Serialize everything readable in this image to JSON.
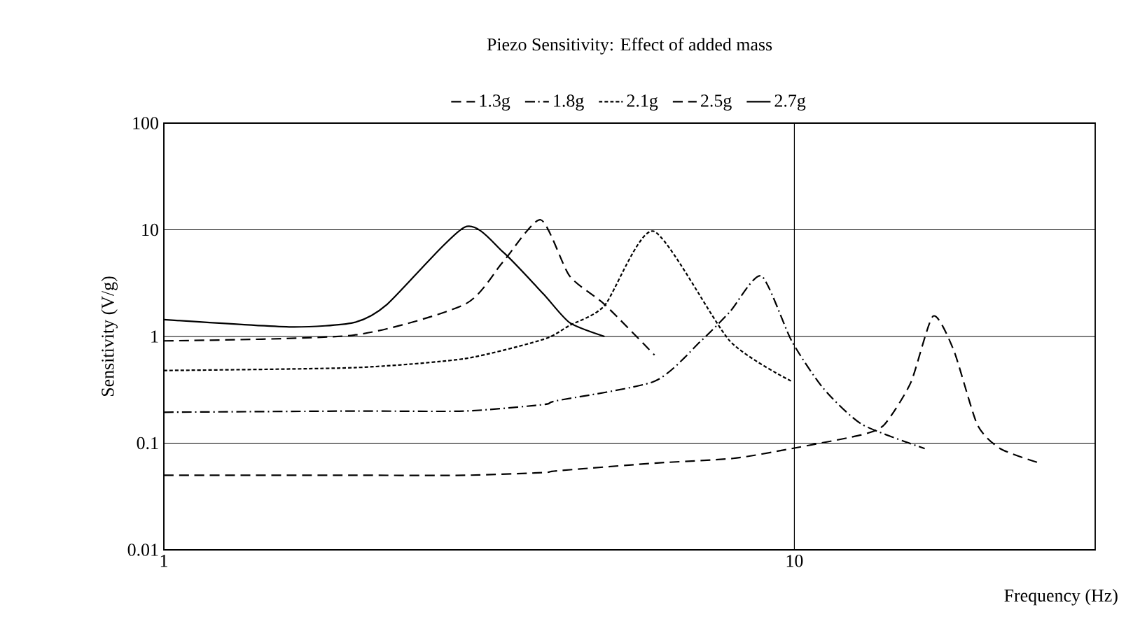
{
  "chart_data": {
    "type": "line",
    "title": "Piezo Sensitivity: Effect of added mass",
    "xlabel": "Frequency (Hz)",
    "ylabel": "Sensitivity (V/g)",
    "log": "xy",
    "grid": true,
    "legend": "top",
    "xlim": [
      1,
      30
    ],
    "ylim": [
      0.01,
      100
    ],
    "xticks": [
      1,
      10
    ],
    "yticks": [
      0.01,
      0.1,
      1,
      10,
      100
    ],
    "series": [
      {
        "name": "1.3g",
        "color": "#000000",
        "line_style": "dashed",
        "x": [
          1,
          2,
          3,
          4,
          4.2,
          6,
          8,
          9.9,
          12.8,
          13.9,
          15.3,
          16.6,
          17.9,
          19.5,
          21.2,
          24.3
        ],
        "values": [
          0.05,
          0.05,
          0.05,
          0.053,
          0.055,
          0.065,
          0.072,
          0.089,
          0.12,
          0.15,
          0.37,
          1.55,
          0.74,
          0.15,
          0.089,
          0.066
        ]
      },
      {
        "name": "1.8g",
        "color": "#000000",
        "line_style": "dashdot",
        "x": [
          1,
          2,
          3,
          4,
          4.2,
          6,
          7.1,
          7.9,
          8.86,
          9.9,
          11.1,
          12.8,
          16.1
        ],
        "values": [
          0.195,
          0.2,
          0.2,
          0.23,
          0.25,
          0.38,
          0.9,
          1.7,
          3.7,
          0.91,
          0.33,
          0.15,
          0.089
        ]
      },
      {
        "name": "2.1g",
        "color": "#000000",
        "line_style": "dotted",
        "x": [
          1,
          2,
          3,
          4,
          4.4,
          5,
          5.98,
          7.9,
          9.9
        ],
        "values": [
          0.48,
          0.51,
          0.62,
          0.94,
          1.27,
          1.95,
          9.7,
          0.91,
          0.38
        ]
      },
      {
        "name": "2.5g",
        "color": "#000000",
        "line_style": "dashed",
        "x": [
          1,
          2,
          3,
          3.45,
          3.96,
          4.4,
          5,
          6
        ],
        "values": [
          0.91,
          1.03,
          2.0,
          5,
          12.4,
          3.7,
          2.0,
          0.67
        ]
      },
      {
        "name": "2.7g",
        "color": "#000000",
        "line_style": "solid",
        "x": [
          1,
          1.58,
          2,
          2.26,
          3.0,
          3.45,
          4,
          4.4,
          5
        ],
        "values": [
          1.44,
          1.23,
          1.35,
          2.0,
          10.6,
          6.2,
          2.5,
          1.35,
          1.0
        ]
      }
    ]
  }
}
